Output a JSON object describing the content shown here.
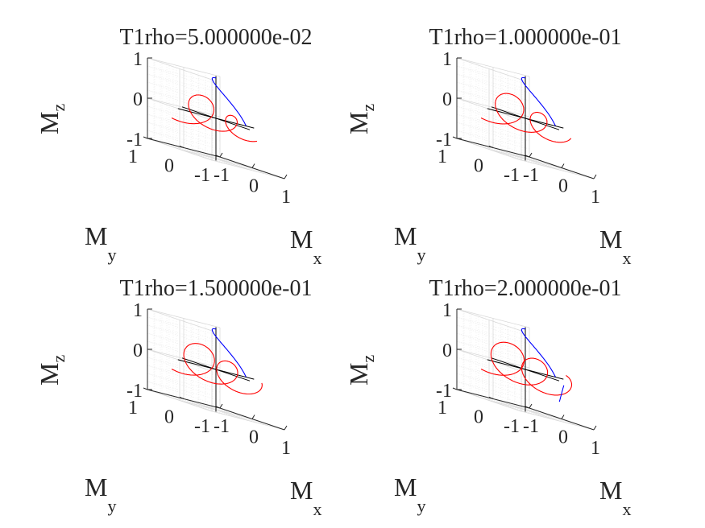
{
  "figure": {
    "background": "#ffffff"
  },
  "chart_data": [
    {
      "type": "line3d",
      "title": "T1rho=5.000000e-02",
      "xlabel": "M",
      "xlabel_sub": "x",
      "ylabel": "M",
      "ylabel_sub": "y",
      "zlabel": "M",
      "zlabel_sub": "z",
      "xlim": [
        -1,
        1
      ],
      "ylim": [
        -1,
        1
      ],
      "zlim": [
        -1,
        1
      ],
      "xticks": [
        "-1",
        "0",
        "1"
      ],
      "yticks": [
        "-1",
        "0",
        "1"
      ],
      "zticks": [
        "-1",
        "0",
        "1"
      ],
      "grid": true,
      "minor_grid": true,
      "colors": {
        "excitation": "#0000ff",
        "relaxation": "#ff0000",
        "axes": "#000000"
      },
      "excitation_tip_end": 0.5,
      "relaxation": {
        "loops": 2.2,
        "decay": 0.45
      }
    },
    {
      "type": "line3d",
      "title": "T1rho=1.000000e-01",
      "xlabel": "M",
      "xlabel_sub": "x",
      "ylabel": "M",
      "ylabel_sub": "y",
      "zlabel": "M",
      "zlabel_sub": "z",
      "xlim": [
        -1,
        1
      ],
      "ylim": [
        -1,
        1
      ],
      "zlim": [
        -1,
        1
      ],
      "xticks": [
        "-1",
        "0",
        "1"
      ],
      "yticks": [
        "-1",
        "0",
        "1"
      ],
      "zticks": [
        "-1",
        "0",
        "1"
      ],
      "grid": true,
      "minor_grid": true,
      "colors": {
        "excitation": "#0000ff",
        "relaxation": "#ff0000",
        "axes": "#000000"
      },
      "excitation_tip_end": 0.5,
      "relaxation": {
        "loops": 2.3,
        "decay": 0.35
      }
    },
    {
      "type": "line3d",
      "title": "T1rho=1.500000e-01",
      "xlabel": "M",
      "xlabel_sub": "x",
      "ylabel": "M",
      "ylabel_sub": "y",
      "zlabel": "M",
      "zlabel_sub": "z",
      "xlim": [
        -1,
        1
      ],
      "ylim": [
        -1,
        1
      ],
      "zlim": [
        -1,
        1
      ],
      "xticks": [
        "-1",
        "0",
        "1"
      ],
      "yticks": [
        "-1",
        "0",
        "1"
      ],
      "zticks": [
        "-1",
        "0",
        "1"
      ],
      "grid": true,
      "minor_grid": true,
      "colors": {
        "excitation": "#0000ff",
        "relaxation": "#ff0000",
        "axes": "#000000"
      },
      "excitation_tip_end": 0.5,
      "relaxation": {
        "loops": 2.4,
        "decay": 0.28
      }
    },
    {
      "type": "line3d",
      "title": "T1rho=2.000000e-01",
      "xlabel": "M",
      "xlabel_sub": "x",
      "ylabel": "M",
      "ylabel_sub": "y",
      "zlabel": "M",
      "zlabel_sub": "z",
      "xlim": [
        -1,
        1
      ],
      "ylim": [
        -1,
        1
      ],
      "zlim": [
        -1,
        1
      ],
      "xticks": [
        "-1",
        "0",
        "1"
      ],
      "yticks": [
        "-1",
        "0",
        "1"
      ],
      "zticks": [
        "-1",
        "0",
        "1"
      ],
      "grid": true,
      "minor_grid": true,
      "colors": {
        "excitation": "#0000ff",
        "relaxation": "#ff0000",
        "axes": "#000000"
      },
      "excitation_tip_end": 0.5,
      "relaxation": {
        "loops": 2.5,
        "decay": 0.2
      },
      "final_excitation": true
    }
  ]
}
